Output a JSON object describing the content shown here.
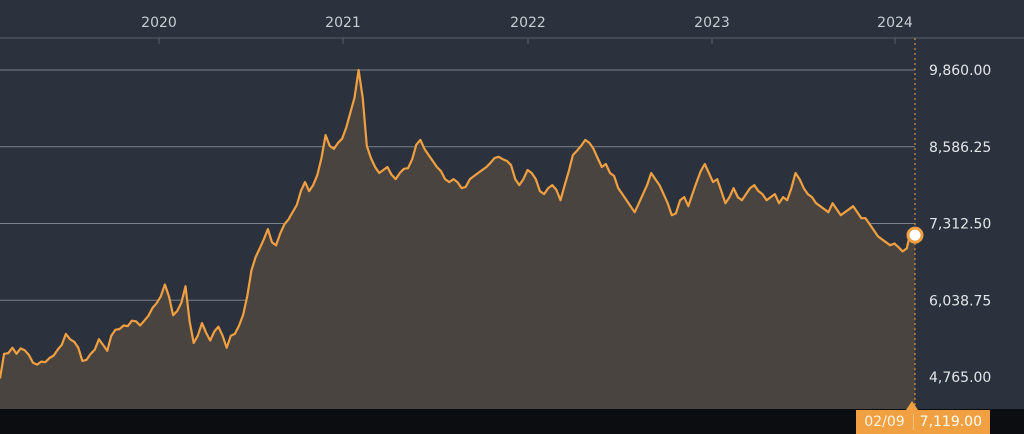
{
  "chart_data": {
    "type": "area",
    "title": "",
    "x_ticks": [
      "2020",
      "2021",
      "2022",
      "2023",
      "2024"
    ],
    "y_ticks": [
      "9,860.00",
      "8,586.25",
      "7,312.50",
      "6,038.75",
      "4,765.00"
    ],
    "ylim": [
      4765,
      9860
    ],
    "grid": true,
    "colors": {
      "line": "#f0a040",
      "fill": "#4a4440",
      "background": "#2b323d",
      "grid": "#7c828b"
    },
    "series": [
      {
        "values": [
          4740,
          5150,
          5160,
          5250,
          5150,
          5240,
          5210,
          5130,
          5000,
          4970,
          5020,
          5010,
          5080,
          5120,
          5220,
          5300,
          5480,
          5390,
          5350,
          5250,
          5030,
          5050,
          5150,
          5220,
          5390,
          5300,
          5200,
          5450,
          5550,
          5560,
          5620,
          5610,
          5700,
          5690,
          5620,
          5700,
          5780,
          5910,
          5990,
          6100,
          6300,
          6100,
          5790,
          5860,
          6000,
          6270,
          5690,
          5330,
          5450,
          5660,
          5500,
          5370,
          5520,
          5600,
          5450,
          5250,
          5450,
          5480,
          5620,
          5800,
          6110,
          6530,
          6750,
          6900,
          7050,
          7220,
          7000,
          6950,
          7150,
          7300,
          7380,
          7500,
          7620,
          7850,
          8000,
          7850,
          7950,
          8120,
          8400,
          8780,
          8600,
          8550,
          8650,
          8720,
          8900,
          9150,
          9400,
          9860,
          9400,
          8600,
          8400,
          8250,
          8150,
          8200,
          8250,
          8120,
          8050,
          8150,
          8220,
          8230,
          8380,
          8620,
          8700,
          8550,
          8450,
          8350,
          8250,
          8180,
          8050,
          8000,
          8050,
          8000,
          7900,
          7920,
          8050,
          8100,
          8150,
          8200,
          8250,
          8320,
          8400,
          8420,
          8380,
          8350,
          8280,
          8050,
          7950,
          8050,
          8200,
          8150,
          8050,
          7850,
          7800,
          7900,
          7950,
          7870,
          7700,
          7950,
          8180,
          8450,
          8520,
          8600,
          8700,
          8650,
          8550,
          8400,
          8250,
          8300,
          8150,
          8100,
          7900,
          7800,
          7700,
          7600,
          7500,
          7650,
          7800,
          7950,
          8150,
          8050,
          7950,
          7800,
          7650,
          7450,
          7480,
          7700,
          7750,
          7600,
          7800,
          8000,
          8180,
          8300,
          8150,
          8000,
          8050,
          7850,
          7650,
          7750,
          7900,
          7750,
          7700,
          7800,
          7900,
          7950,
          7850,
          7800,
          7700,
          7750,
          7800,
          7650,
          7750,
          7700,
          7900,
          8150,
          8050,
          7900,
          7800,
          7750,
          7650,
          7600,
          7550,
          7500,
          7650,
          7550,
          7450,
          7500,
          7550,
          7600,
          7500,
          7400,
          7400,
          7300,
          7200,
          7100,
          7050,
          7000,
          6950,
          6980,
          6920,
          6850,
          6900,
          7200,
          7119
        ]
      }
    ],
    "tooltip": {
      "date": "02/09",
      "value": "7,119.00"
    }
  }
}
